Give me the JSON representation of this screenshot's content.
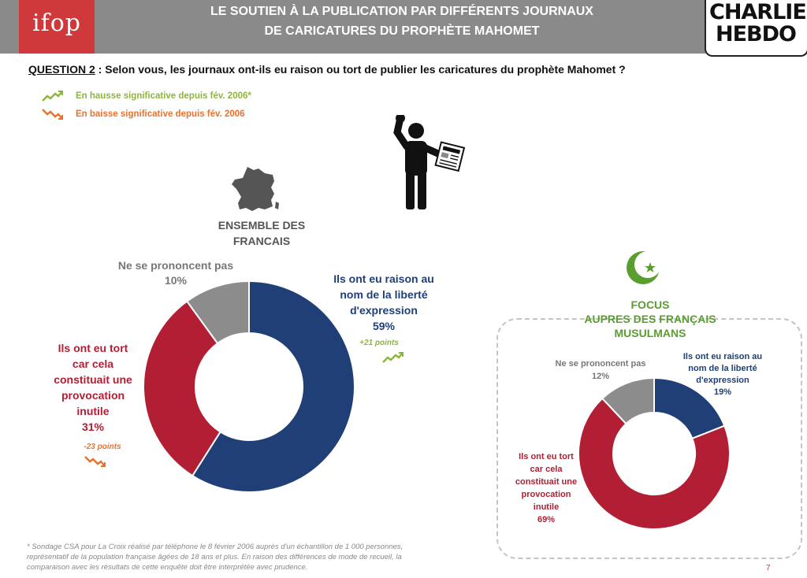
{
  "header": {
    "logo": "ifop",
    "title_line1": "LE SOUTIEN À LA PUBLICATION PAR DIFFÉRENTS JOURNAUX",
    "title_line2": "DE CARICATURES DU PROPHÈTE MAHOMET",
    "brand_line1": "CHARLIE",
    "brand_line2": "HEBDO"
  },
  "question": {
    "label": "QUESTION 2",
    "text": " :  Selon vous, les journaux ont-ils eu raison ou tort de publier les caricatures du prophète Mahomet ?"
  },
  "legend": {
    "up": "En hausse significative depuis fév. 2006*",
    "down": "En baisse significative depuis fév. 2006"
  },
  "colors": {
    "raison": "#1f3f76",
    "tort": "#b21e33",
    "nsp": "#8c8c8c",
    "up": "#8db53c",
    "down": "#e8722c",
    "header": "#8a8a8a",
    "ifop": "#d0393b"
  },
  "icons": {
    "france": "france-map-icon",
    "person": "protester-newspaper-icon",
    "crescent": "crescent-star-icon",
    "up": "trend-up-icon",
    "down": "trend-down-icon"
  },
  "ensemble": {
    "title_line1": "ENSEMBLE DES",
    "title_line2": "FRANCAIS",
    "nsp_label": "Ne se prononcent pas",
    "nsp_value": "10%",
    "raison_l1": "Ils ont eu raison au",
    "raison_l2": "nom de la liberté",
    "raison_l3": "d'expression",
    "raison_value": "59%",
    "raison_delta": "+21 points",
    "tort_l1": "Ils ont eu tort",
    "tort_l2": "car cela",
    "tort_l3": "constituait une",
    "tort_l4": "provocation",
    "tort_l5": "inutile",
    "tort_value": "31%",
    "tort_delta": "-23 points"
  },
  "focus": {
    "title_line1": "FOCUS",
    "title_line2": "AUPRES DES FRANÇAIS",
    "title_line3": "MUSULMANS",
    "nsp_label": "Ne se prononcent pas",
    "nsp_value": "12%",
    "raison_l1": "Ils ont eu raison au",
    "raison_l2": "nom de la liberté",
    "raison_l3": "d'expression",
    "raison_value": "19%",
    "tort_l1": "Ils ont eu tort",
    "tort_l2": "car cela",
    "tort_l3": "constituait une",
    "tort_l4": "provocation",
    "tort_l5": "inutile",
    "tort_value": "69%"
  },
  "footnote": {
    "line1": "* Sondage CSA pour La Croix réalisé par téléphone le 8 février 2006 auprès d'un échantillon de 1 000 personnes,",
    "line2": "représentatif de la population française âgées de 18 ans et plus. En raison des différences de mode de recueil, la",
    "line3": "comparaison avec les résultats de cette enquête doit être interprétée avec prudence."
  },
  "page_number": "7",
  "chart_data": [
    {
      "type": "pie",
      "title": "ENSEMBLE DES FRANCAIS",
      "categories": [
        "Ils ont eu raison au nom de la liberté d'expression",
        "Ils ont eu tort car cela constituait une provocation inutile",
        "Ne se prononcent pas"
      ],
      "values": [
        59,
        31,
        10
      ],
      "deltas": [
        "+21 points",
        "-23 points",
        ""
      ]
    },
    {
      "type": "pie",
      "title": "FOCUS AUPRES DES FRANÇAIS MUSULMANS",
      "categories": [
        "Ils ont eu raison au nom de la liberté d'expression",
        "Ils ont eu tort car cela constituait une provocation inutile",
        "Ne se prononcent pas"
      ],
      "values": [
        19,
        69,
        12
      ]
    }
  ]
}
